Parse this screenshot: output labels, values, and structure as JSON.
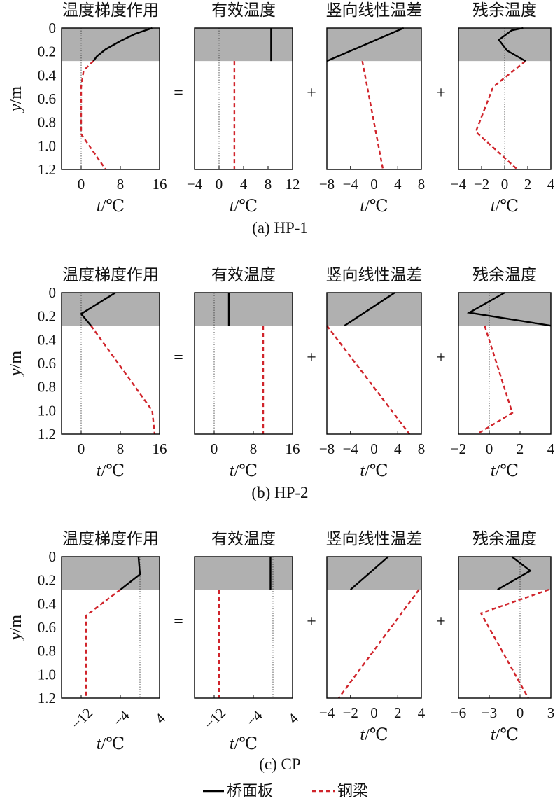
{
  "legend": {
    "deck_label": "桥面板",
    "girder_label": "钢梁"
  },
  "colors": {
    "deck": "#000000",
    "girder": "#d0242b",
    "shade": "#b0b0b0"
  },
  "ops": [
    "=",
    "+",
    "+"
  ],
  "panel_titles": [
    "温度梯度作用",
    "有效温度",
    "竖向线性温差",
    "残余温度"
  ],
  "y_axis_label": "y/m",
  "x_axis_label": "t/℃",
  "chart_data": [
    {
      "type": "line",
      "group": "HP-1",
      "caption": "(a) HP-1",
      "ylim": [
        0,
        1.2
      ],
      "y_ticks": [
        "0",
        "0.2",
        "0.4",
        "0.6",
        "0.8",
        "1.0",
        "1.2"
      ],
      "deck_bottom": 0.28,
      "panels": [
        {
          "title": "温度梯度作用",
          "xlim": [
            -4,
            16
          ],
          "xticks": [
            "0",
            "8",
            "16"
          ],
          "xtick_values": [
            0,
            8,
            16
          ],
          "ref_x": 0,
          "tilt": false,
          "deck": [
            [
              14.5,
              0
            ],
            [
              11,
              0.05
            ],
            [
              8,
              0.11
            ],
            [
              5,
              0.18
            ],
            [
              3.2,
              0.24
            ],
            [
              2.5,
              0.28
            ]
          ],
          "girder": [
            [
              2.5,
              0.28
            ],
            [
              0.5,
              0.36
            ],
            [
              0,
              0.5
            ],
            [
              0,
              0.9
            ],
            [
              5,
              1.2
            ]
          ]
        },
        {
          "title": "有效温度",
          "xlim": [
            -4,
            12
          ],
          "xticks": [
            "−4",
            "0",
            "4",
            "8",
            "12"
          ],
          "xtick_values": [
            -4,
            0,
            4,
            8,
            12
          ],
          "ref_x": 0,
          "tilt": false,
          "deck": [
            [
              8.5,
              0
            ],
            [
              8.5,
              0.28
            ]
          ],
          "girder": [
            [
              2.5,
              0.28
            ],
            [
              2.5,
              1.2
            ]
          ]
        },
        {
          "title": "竖向线性温差",
          "xlim": [
            -8,
            8
          ],
          "xticks": [
            "−8",
            "−4",
            "0",
            "4",
            "8"
          ],
          "xtick_values": [
            -8,
            -4,
            0,
            4,
            8
          ],
          "ref_x": 0,
          "tilt": false,
          "deck": [
            [
              5,
              0
            ],
            [
              -8,
              0.28
            ]
          ],
          "girder": [
            [
              -2,
              0.28
            ],
            [
              1.5,
              1.2
            ]
          ]
        },
        {
          "title": "残余温度",
          "xlim": [
            -4,
            4
          ],
          "xticks": [
            "−4",
            "−2",
            "0",
            "2",
            "4"
          ],
          "xtick_values": [
            -4,
            -2,
            0,
            2,
            4
          ],
          "ref_x": 0,
          "tilt": false,
          "deck": [
            [
              1.6,
              0
            ],
            [
              0.6,
              0.02
            ],
            [
              -0.5,
              0.1
            ],
            [
              0.2,
              0.19
            ],
            [
              1.8,
              0.28
            ]
          ],
          "girder": [
            [
              1.8,
              0.28
            ],
            [
              -1,
              0.5
            ],
            [
              -2.5,
              0.88
            ],
            [
              1.1,
              1.2
            ]
          ]
        }
      ]
    },
    {
      "type": "line",
      "group": "HP-2",
      "caption": "(b) HP-2",
      "ylim": [
        0,
        1.2
      ],
      "y_ticks": [
        "0",
        "0.2",
        "0.4",
        "0.6",
        "0.8",
        "1.0",
        "1.2"
      ],
      "deck_bottom": 0.28,
      "panels": [
        {
          "title": "温度梯度作用",
          "xlim": [
            -4,
            16
          ],
          "xticks": [
            "0",
            "8",
            "16"
          ],
          "xtick_values": [
            0,
            8,
            16
          ],
          "ref_x": 0,
          "tilt": false,
          "deck": [
            [
              7,
              0
            ],
            [
              0,
              0.18
            ],
            [
              2,
              0.28
            ]
          ],
          "girder": [
            [
              2,
              0.28
            ],
            [
              14.5,
              1.0
            ],
            [
              15,
              1.2
            ]
          ]
        },
        {
          "title": "有效温度",
          "xlim": [
            -4,
            16
          ],
          "xticks": [
            "0",
            "8",
            "16"
          ],
          "xtick_values": [
            0,
            8,
            16
          ],
          "ref_x": 0,
          "tilt": false,
          "deck": [
            [
              3,
              0
            ],
            [
              3,
              0.28
            ]
          ],
          "girder": [
            [
              10,
              0.28
            ],
            [
              10,
              1.2
            ]
          ]
        },
        {
          "title": "竖向线性温差",
          "xlim": [
            -8,
            8
          ],
          "xticks": [
            "−8",
            "−4",
            "0",
            "4",
            "8"
          ],
          "xtick_values": [
            -8,
            -4,
            0,
            4,
            8
          ],
          "ref_x": 0,
          "tilt": false,
          "deck": [
            [
              3.5,
              0
            ],
            [
              -5,
              0.28
            ]
          ],
          "girder": [
            [
              -8,
              0.28
            ],
            [
              6,
              1.2
            ]
          ]
        },
        {
          "title": "残余温度",
          "xlim": [
            -2,
            4
          ],
          "xticks": [
            "−2",
            "0",
            "2",
            "4"
          ],
          "xtick_values": [
            -2,
            0,
            2,
            4
          ],
          "ref_x": 0,
          "tilt": false,
          "deck": [
            [
              1,
              0
            ],
            [
              -1.3,
              0.17
            ],
            [
              4,
              0.28
            ]
          ],
          "girder": [
            [
              -0.3,
              0.28
            ],
            [
              1.5,
              1.02
            ],
            [
              -0.8,
              1.2
            ]
          ]
        }
      ]
    },
    {
      "type": "line",
      "group": "CP",
      "caption": "(c) CP",
      "ylim": [
        0,
        1.2
      ],
      "y_ticks": [
        "0",
        "0.2",
        "0.4",
        "0.6",
        "0.8",
        "1.0",
        "1.2"
      ],
      "deck_bottom": 0.28,
      "panels": [
        {
          "title": "温度梯度作用",
          "xlim": [
            -16,
            4
          ],
          "xticks": [
            "−12",
            "−4",
            "4"
          ],
          "xtick_values": [
            -12,
            -4,
            4
          ],
          "ref_x": 0,
          "tilt": true,
          "deck": [
            [
              -0.3,
              0
            ],
            [
              0,
              0.15
            ],
            [
              -4,
              0.28
            ]
          ],
          "girder": [
            [
              -4,
              0.28
            ],
            [
              -11,
              0.5
            ],
            [
              -11,
              1.2
            ]
          ]
        },
        {
          "title": "有效温度",
          "xlim": [
            -16,
            4
          ],
          "xticks": [
            "−12",
            "−4",
            "4"
          ],
          "xtick_values": [
            -12,
            -4,
            4
          ],
          "ref_x": 0,
          "tilt": true,
          "deck": [
            [
              -0.5,
              0
            ],
            [
              -0.5,
              0.28
            ]
          ],
          "girder": [
            [
              -11,
              0.28
            ],
            [
              -11,
              1.2
            ]
          ]
        },
        {
          "title": "竖向线性温差",
          "xlim": [
            -4,
            4
          ],
          "xticks": [
            "−4",
            "−2",
            "0",
            "2",
            "4"
          ],
          "xtick_values": [
            -4,
            -2,
            0,
            2,
            4
          ],
          "ref_x": 0,
          "tilt": false,
          "deck": [
            [
              1.2,
              0
            ],
            [
              -2,
              0.28
            ]
          ],
          "girder": [
            [
              3.8,
              0.28
            ],
            [
              -3,
              1.2
            ]
          ]
        },
        {
          "title": "残余温度",
          "xlim": [
            -6,
            3
          ],
          "xticks": [
            "−6",
            "−3",
            "0",
            "3"
          ],
          "xtick_values": [
            -6,
            -3,
            0,
            3
          ],
          "ref_x": 0,
          "tilt": false,
          "deck": [
            [
              -0.8,
              0
            ],
            [
              1,
              0.12
            ],
            [
              -2.2,
              0.28
            ]
          ],
          "girder": [
            [
              2.8,
              0.28
            ],
            [
              -3.8,
              0.48
            ],
            [
              0.8,
              1.2
            ]
          ]
        }
      ]
    }
  ]
}
